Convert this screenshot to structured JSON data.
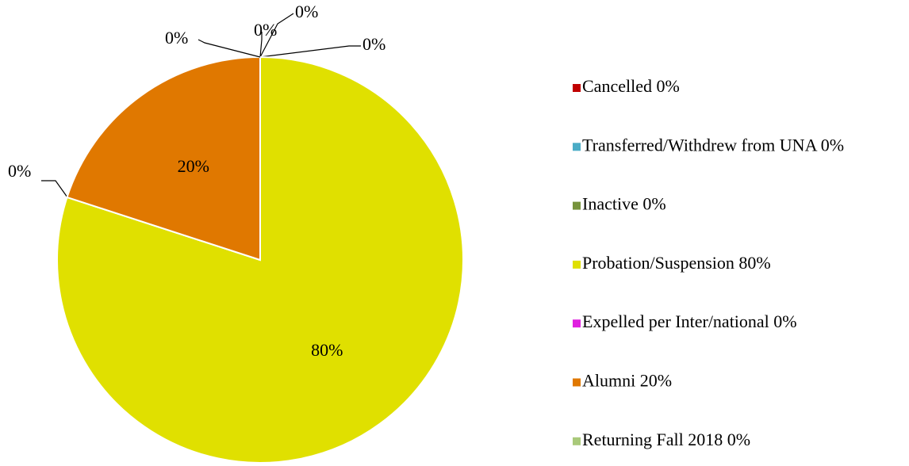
{
  "chart_data": {
    "type": "pie",
    "categories": [
      "Cancelled",
      "Transferred/Withdrew from UNA",
      "Inactive",
      "Probation/Suspension",
      "Expelled per Inter/national",
      "Alumni",
      "Returning Fall 2018"
    ],
    "values": [
      0,
      0,
      0,
      80,
      0,
      20,
      0
    ],
    "value_labels": [
      "0%",
      "0%",
      "0%",
      "80%",
      "0%",
      "20%",
      "0%"
    ],
    "colors": [
      "#c00000",
      "#4bacc6",
      "#77933c",
      "#e0e000",
      "#e020e0",
      "#e07800",
      "#a9c97a"
    ],
    "legend": "right"
  }
}
